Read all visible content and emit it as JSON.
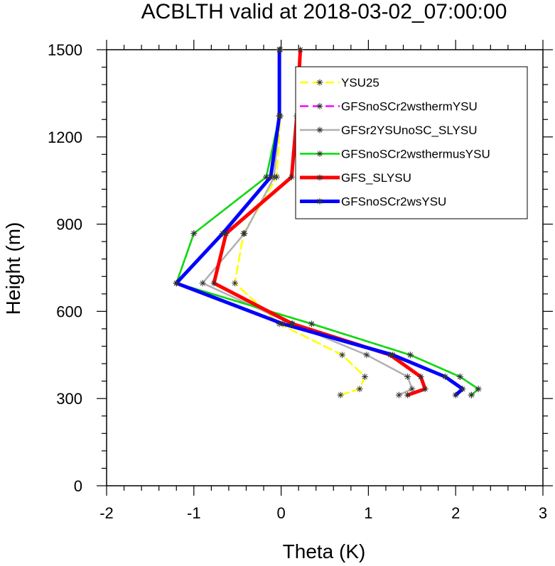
{
  "chart_data": {
    "type": "line",
    "title": "ACBLTH valid at 2018-03-02_07:00:00",
    "xlabel": "Theta (K)",
    "ylabel": "Height (m)",
    "xlim": [
      -2,
      3
    ],
    "ylim": [
      0,
      1500
    ],
    "x_ticks": [
      -2,
      -1,
      0,
      1,
      2,
      3
    ],
    "y_ticks": [
      0,
      300,
      600,
      900,
      1200,
      1500
    ],
    "x_tick_labels": [
      "-2",
      "-1",
      "0",
      "1",
      "2",
      "3"
    ],
    "y_tick_labels": [
      "0",
      "300",
      "600",
      "900",
      "1200",
      "1500"
    ],
    "legend_position": "top-right",
    "marker_heights": [
      312,
      333,
      375,
      450,
      557,
      697,
      868,
      1062,
      1272,
      1500
    ],
    "series": [
      {
        "name": "YSU25",
        "color": "#ffff00",
        "dashed": true,
        "width": 2.5,
        "points": [
          [
            0.68,
            312
          ],
          [
            0.9,
            333
          ],
          [
            0.96,
            375
          ],
          [
            0.7,
            450
          ],
          [
            -0.02,
            557
          ],
          [
            -0.53,
            697
          ],
          [
            -0.43,
            868
          ],
          [
            -0.05,
            1062
          ],
          [
            -0.01,
            1272
          ],
          [
            -0.01,
            1500
          ]
        ]
      },
      {
        "name": "GFSnoSCr2wsthermYSU",
        "color": "#ff00ff",
        "dashed": true,
        "width": 2.5,
        "points": [
          [
            2.18,
            312
          ],
          [
            2.26,
            333
          ],
          [
            2.05,
            375
          ],
          [
            1.48,
            450
          ],
          [
            0.35,
            557
          ],
          [
            -1.2,
            697
          ],
          [
            -1.0,
            868
          ],
          [
            -0.17,
            1062
          ],
          [
            -0.02,
            1272
          ],
          [
            -0.02,
            1500
          ]
        ]
      },
      {
        "name": "GFSr2YSUnoSC_SLYSU",
        "color": "#b0b0b0",
        "dashed": false,
        "width": 2.5,
        "points": [
          [
            1.35,
            312
          ],
          [
            1.5,
            333
          ],
          [
            1.45,
            375
          ],
          [
            0.98,
            450
          ],
          [
            0.12,
            557
          ],
          [
            -0.9,
            697
          ],
          [
            -0.42,
            868
          ],
          [
            -0.08,
            1062
          ],
          [
            -0.02,
            1272
          ],
          [
            -0.02,
            1500
          ]
        ]
      },
      {
        "name": "GFSnoSCr2wsthermusYSU",
        "color": "#00e000",
        "dashed": false,
        "width": 2.5,
        "points": [
          [
            2.18,
            312
          ],
          [
            2.26,
            333
          ],
          [
            2.05,
            375
          ],
          [
            1.48,
            450
          ],
          [
            0.35,
            557
          ],
          [
            -1.2,
            697
          ],
          [
            -1.0,
            868
          ],
          [
            -0.17,
            1062
          ],
          [
            -0.02,
            1272
          ],
          [
            -0.02,
            1500
          ]
        ]
      },
      {
        "name": "GFS_SLYSU",
        "color": "#ff0000",
        "dashed": false,
        "width": 5,
        "points": [
          [
            1.45,
            312
          ],
          [
            1.65,
            333
          ],
          [
            1.6,
            375
          ],
          [
            1.25,
            450
          ],
          [
            0.13,
            557
          ],
          [
            -0.77,
            697
          ],
          [
            -0.63,
            868
          ],
          [
            0.12,
            1062
          ],
          [
            0.18,
            1272
          ],
          [
            0.22,
            1500
          ]
        ]
      },
      {
        "name": "GFSnoSCr2wsYSU",
        "color": "#0000ff",
        "dashed": false,
        "width": 5,
        "points": [
          [
            2.0,
            312
          ],
          [
            2.08,
            333
          ],
          [
            1.88,
            375
          ],
          [
            1.28,
            450
          ],
          [
            0.02,
            557
          ],
          [
            -1.2,
            697
          ],
          [
            -0.67,
            868
          ],
          [
            -0.12,
            1062
          ],
          [
            -0.02,
            1272
          ],
          [
            -0.02,
            1500
          ]
        ]
      }
    ]
  }
}
